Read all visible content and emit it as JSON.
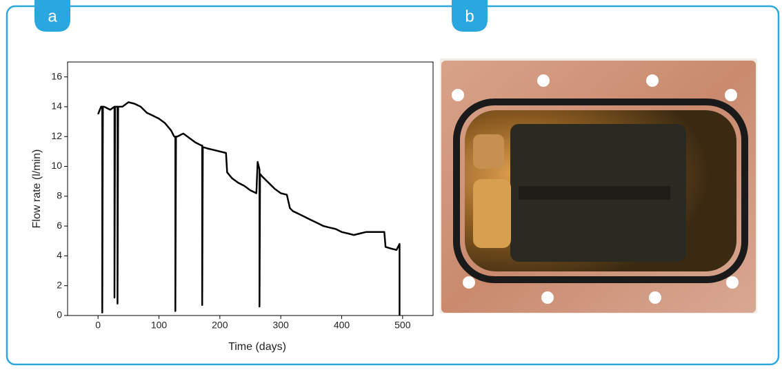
{
  "panel_labels": [
    "a",
    "b"
  ],
  "chart_data": {
    "type": "line",
    "xlabel": "Time (days)",
    "ylabel": "Flow rate (l/min)",
    "x": [
      0,
      5,
      7,
      7,
      8,
      10,
      20,
      27,
      27,
      28,
      30,
      32,
      32,
      33,
      40,
      50,
      60,
      70,
      80,
      90,
      100,
      110,
      120,
      125,
      127,
      127,
      128,
      130,
      140,
      150,
      160,
      170,
      171,
      171,
      172,
      180,
      190,
      200,
      210,
      212,
      220,
      230,
      240,
      250,
      260,
      262,
      265,
      265,
      266,
      270,
      280,
      290,
      300,
      310,
      315,
      320,
      330,
      340,
      350,
      360,
      370,
      380,
      390,
      400,
      410,
      420,
      430,
      440,
      450,
      460,
      470,
      472,
      480,
      490,
      495,
      495
    ],
    "values": [
      13.5,
      14,
      14,
      0.2,
      14,
      14,
      13.8,
      14,
      1.2,
      14,
      14,
      14,
      0.8,
      14,
      14,
      14.3,
      14.2,
      14,
      13.6,
      13.4,
      13.2,
      12.9,
      12.4,
      12,
      12,
      0.3,
      12,
      12,
      12.2,
      11.9,
      11.6,
      11.4,
      11.4,
      0.7,
      11.3,
      11.2,
      11.1,
      11,
      10.9,
      9.6,
      9.2,
      8.9,
      8.7,
      8.4,
      8.2,
      10.3,
      9.8,
      0.6,
      9.5,
      9.3,
      8.9,
      8.5,
      8.2,
      8.1,
      7.2,
      7,
      6.8,
      6.6,
      6.4,
      6.2,
      6,
      5.9,
      5.8,
      5.6,
      5.5,
      5.4,
      5.5,
      5.6,
      5.6,
      5.6,
      5.6,
      4.6,
      4.5,
      4.4,
      4.8,
      0
    ],
    "color": "#000000",
    "xlim": [
      -50,
      550
    ],
    "xticks": [
      0,
      100,
      200,
      300,
      400,
      500
    ],
    "ylim": [
      0,
      17
    ],
    "yticks": [
      0,
      2,
      4,
      6,
      8,
      10,
      12,
      14,
      16
    ]
  }
}
